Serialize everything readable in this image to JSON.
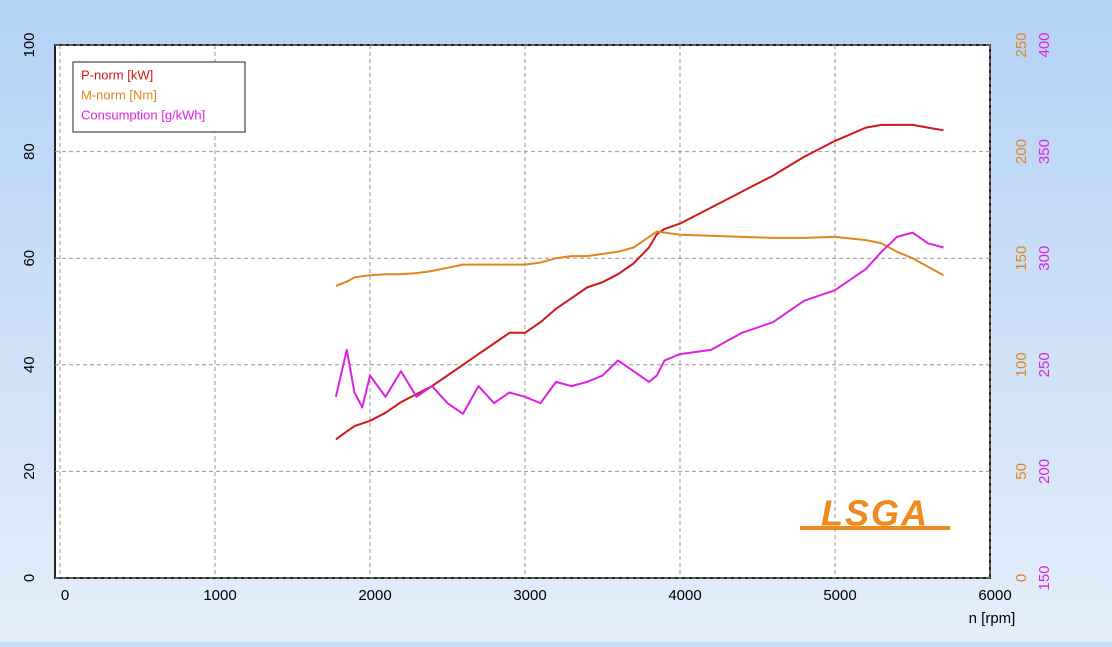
{
  "chart_data": {
    "type": "line",
    "x_label": "n [rpm]",
    "annotation": "LSGA",
    "xlim": [
      0,
      6000
    ],
    "xticks": [
      0,
      1000,
      2000,
      3000,
      4000,
      5000,
      6000
    ],
    "ylim": [
      0,
      100
    ],
    "yticks": [
      0,
      20,
      40,
      60,
      80,
      100
    ],
    "y2lim": [
      0,
      250
    ],
    "y2ticks": [
      0,
      50,
      100,
      150,
      200,
      250
    ],
    "y3lim": [
      150,
      400
    ],
    "y3ticks": [
      150,
      200,
      250,
      300,
      350,
      400
    ],
    "grid": true,
    "legend": "top-left",
    "x": [
      1780,
      1850,
      1900,
      1950,
      2000,
      2100,
      2200,
      2300,
      2400,
      2500,
      2600,
      2700,
      2800,
      2900,
      3000,
      3100,
      3200,
      3300,
      3400,
      3500,
      3600,
      3700,
      3800,
      3850,
      3900,
      4000,
      4200,
      4400,
      4600,
      4800,
      5000,
      5200,
      5300,
      5400,
      5500,
      5600,
      5700
    ],
    "series": [
      {
        "name": "P-norm [kW]",
        "color": "#d01818",
        "values": [
          26,
          27.5,
          28.5,
          29,
          29.5,
          31,
          33,
          34.5,
          36,
          38,
          40,
          42,
          44,
          46,
          46,
          48,
          50.5,
          52.5,
          54.5,
          55.5,
          57,
          59,
          62,
          64.5,
          65.5,
          66.5,
          69.5,
          72.5,
          75.5,
          79,
          82,
          84.5,
          85,
          85,
          85,
          84.5,
          84
        ]
      },
      {
        "name": "M-norm [Nm]",
        "color": "#e0861e",
        "axis": "y2",
        "values": [
          137,
          139,
          141,
          141.5,
          142,
          142.5,
          142.5,
          143,
          144,
          145.5,
          147,
          147,
          147,
          147,
          147,
          148,
          150,
          151,
          151,
          152,
          153,
          155,
          160,
          162.5,
          162,
          161,
          160.5,
          160,
          159.5,
          159.5,
          160,
          158.5,
          157,
          153,
          150,
          146,
          142
        ]
      },
      {
        "name": "Consumption [g/kWh]",
        "color": "#e020e0",
        "axis": "y3",
        "values": [
          235,
          257,
          237,
          230,
          245,
          235,
          247,
          235,
          240,
          232,
          227,
          240,
          232,
          237,
          235,
          232,
          242,
          240,
          242,
          245,
          252,
          247,
          242,
          245,
          252,
          255,
          257,
          265,
          270,
          280,
          285,
          295,
          303,
          310,
          312,
          307,
          305
        ]
      }
    ]
  }
}
